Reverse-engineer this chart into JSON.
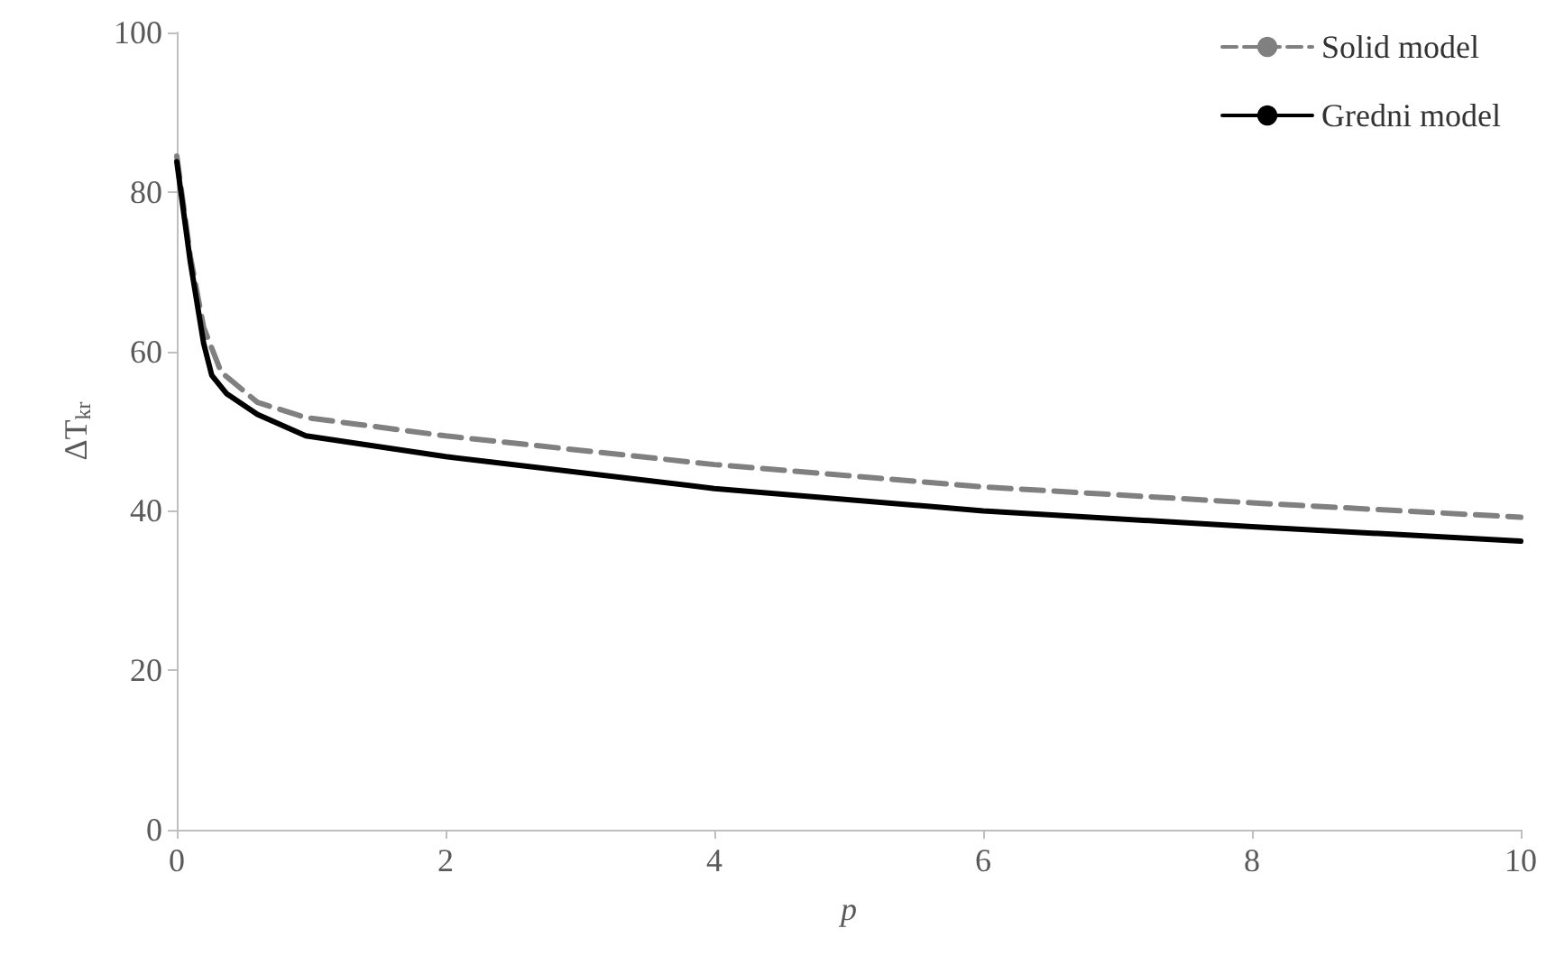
{
  "chart_data": {
    "type": "line",
    "xlabel": "p",
    "ylabel": "ΔT$_{kr}$",
    "xlim": [
      0,
      10
    ],
    "xticks": [
      0,
      2,
      4,
      6,
      8,
      10
    ],
    "ylim": [
      0,
      100
    ],
    "yticks": [
      0,
      20,
      40,
      60,
      80,
      100
    ],
    "grid": false,
    "legend": "top right",
    "marker": "none",
    "series": [
      {
        "name": "Solid model",
        "color": "#808080",
        "line_style": "dashed",
        "x": [
          0,
          0.1,
          0.2,
          0.33,
          0.6,
          0.96,
          2,
          4,
          6,
          8,
          10
        ],
        "values": [
          84.5,
          72,
          63,
          57.4,
          53.6,
          51.7,
          49.4,
          45.8,
          43,
          41,
          39.2
        ]
      },
      {
        "name": "Gredni model",
        "color": "#000000",
        "line_style": "solid",
        "x": [
          0,
          0.1,
          0.2,
          0.26,
          0.37,
          0.6,
          0.96,
          2,
          4,
          6,
          8,
          10
        ],
        "values": [
          83.8,
          71.3,
          61,
          57,
          54.7,
          52.1,
          49.4,
          46.8,
          42.8,
          40,
          38,
          36.2
        ]
      }
    ]
  }
}
